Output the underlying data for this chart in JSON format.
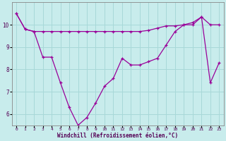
{
  "line1_x": [
    0,
    1,
    2,
    3,
    4,
    5,
    6,
    7,
    8,
    9,
    10,
    11,
    12,
    13,
    14,
    15,
    16,
    17,
    18,
    19,
    20,
    21,
    22,
    23
  ],
  "line1_y": [
    10.5,
    9.8,
    9.7,
    9.7,
    9.7,
    9.7,
    9.7,
    9.7,
    9.7,
    9.7,
    9.7,
    9.7,
    9.7,
    9.7,
    9.7,
    9.75,
    9.85,
    9.95,
    9.95,
    10.0,
    10.0,
    10.35,
    10.0,
    10.0
  ],
  "line2_x": [
    0,
    1,
    2,
    3,
    4,
    5,
    6,
    7,
    8,
    9,
    10,
    11,
    12,
    13,
    14,
    15,
    16,
    17,
    18,
    19,
    20,
    21,
    22,
    23
  ],
  "line2_y": [
    10.5,
    9.8,
    9.7,
    8.55,
    8.55,
    7.4,
    6.3,
    5.5,
    5.85,
    6.5,
    7.25,
    7.6,
    8.5,
    8.2,
    8.2,
    8.35,
    8.5,
    9.1,
    9.7,
    10.0,
    10.1,
    10.35,
    7.4,
    8.3
  ],
  "line_color": "#990099",
  "bg_color": "#c8ecec",
  "grid_color": "#a8d8d8",
  "xlabel": "Windchill (Refroidissement éolien,°C)",
  "ylim": [
    5.5,
    11.0
  ],
  "xlim": [
    -0.5,
    23.5
  ],
  "yticks": [
    6,
    7,
    8,
    9,
    10
  ],
  "xticks": [
    0,
    1,
    2,
    3,
    4,
    5,
    6,
    7,
    8,
    9,
    10,
    11,
    12,
    13,
    14,
    15,
    16,
    17,
    18,
    19,
    20,
    21,
    22,
    23
  ]
}
